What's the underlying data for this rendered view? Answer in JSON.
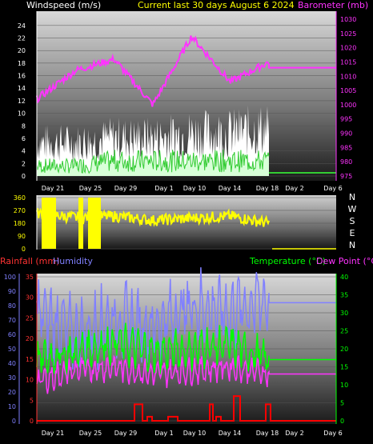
{
  "header": {
    "wind_title": "Windspeed (m/s)",
    "center_title": "Current last 30 days August 6 2024",
    "baro_title": "Barometer (mb)"
  },
  "colors": {
    "wind_axis": "#ffffff",
    "baro": "#ff33ff",
    "wind_fill": "#e8ffe8",
    "gust": "#ffffff",
    "wind_avg": "#33cc33",
    "direction": "#ffff00",
    "rain_axis": "#ff3333",
    "humidity": "#8080ff",
    "temperature": "#00ff00",
    "dew_point": "#ff33ff",
    "rainfall": "#ff0000",
    "title_center": "#ffff00"
  },
  "x_ticks": [
    "Day 21",
    "Day 25",
    "Day 29",
    "Day 1",
    "Day 10",
    "Day 14",
    "Day 18",
    "Day 2",
    "Day 6"
  ],
  "chart_data": [
    {
      "type": "area",
      "title": "Current last 30 days August 6 2024",
      "ylabel": "Windspeed (m/s)",
      "y2label": "Barometer (mb)",
      "ylim": [
        0,
        25
      ],
      "y2lim": [
        975,
        1030
      ],
      "y_ticks": [
        "24",
        "22",
        "20",
        "18",
        "16",
        "14",
        "12",
        "10",
        "8",
        "6",
        "4",
        "2",
        "0"
      ],
      "y2_ticks": [
        "1030",
        "1025",
        "1020",
        "1015",
        "1010",
        "1005",
        "1000",
        "995",
        "990",
        "985",
        "980",
        "975"
      ],
      "x": [
        "Day 21",
        "Day 25",
        "Day 29",
        "Day 1",
        "Day 10",
        "Day 14",
        "Day 18",
        "Day 2",
        "Day 6"
      ],
      "series": [
        {
          "name": "Barometer",
          "axis": "right",
          "values": [
            1002,
            1012,
            1016,
            1000,
            1024,
            1008,
            1015,
            1013,
            1013
          ]
        },
        {
          "name": "Gust",
          "axis": "left",
          "values": [
            7,
            7,
            8,
            8,
            9,
            9,
            10,
            0,
            0
          ]
        },
        {
          "name": "Windspeed",
          "axis": "left",
          "values": [
            2,
            2,
            3,
            3,
            3,
            3,
            3,
            0,
            0
          ]
        }
      ]
    },
    {
      "type": "scatter",
      "ylabel_right": [
        "N",
        "W",
        "S",
        "E",
        "N"
      ],
      "ylim": [
        0,
        360
      ],
      "y_ticks": [
        "360",
        "270",
        "180",
        "90",
        "0"
      ],
      "x": [
        "Day 21",
        "Day 25",
        "Day 29",
        "Day 1",
        "Day 10",
        "Day 14",
        "Day 18",
        "Day 2",
        "Day 6"
      ],
      "series": [
        {
          "name": "Wind direction",
          "values": [
            250,
            220,
            230,
            200,
            215,
            230,
            180,
            0,
            0
          ]
        }
      ]
    },
    {
      "type": "line",
      "ylabel_left1": "Rainfall (mm)",
      "ylabel_left2": "Humidity",
      "ylabel_right1": "Temperature (°C)",
      "ylabel_right2": "Dew Point (°C)",
      "rain_lim": [
        0,
        35
      ],
      "humidity_lim": [
        0,
        100
      ],
      "temp_lim": [
        0,
        40
      ],
      "rain_ticks": [
        "35",
        "30",
        "25",
        "20",
        "15",
        "10",
        "5",
        "0"
      ],
      "humidity_ticks": [
        "100",
        "90",
        "80",
        "70",
        "60",
        "50",
        "40",
        "30",
        "20",
        "10",
        "0"
      ],
      "temp_ticks": [
        "40",
        "35",
        "30",
        "25",
        "20",
        "15",
        "10",
        "5",
        "0"
      ],
      "x": [
        "Day 21",
        "Day 25",
        "Day 29",
        "Day 1",
        "Day 10",
        "Day 14",
        "Day 18",
        "Day 2",
        "Day 6"
      ],
      "series": [
        {
          "name": "Humidity",
          "axis": "humidity",
          "values": [
            75,
            60,
            70,
            65,
            80,
            75,
            85,
            82,
            82
          ]
        },
        {
          "name": "Temperature",
          "axis": "temp",
          "values": [
            17,
            19,
            22,
            19,
            20,
            21,
            17,
            17,
            17
          ]
        },
        {
          "name": "Dew Point",
          "axis": "temp",
          "values": [
            11,
            14,
            15,
            13,
            14,
            15,
            13,
            13,
            13
          ]
        },
        {
          "name": "Rainfall",
          "axis": "rain",
          "values": [
            0,
            0,
            4,
            1,
            1,
            2,
            4,
            0,
            0
          ]
        }
      ]
    }
  ]
}
